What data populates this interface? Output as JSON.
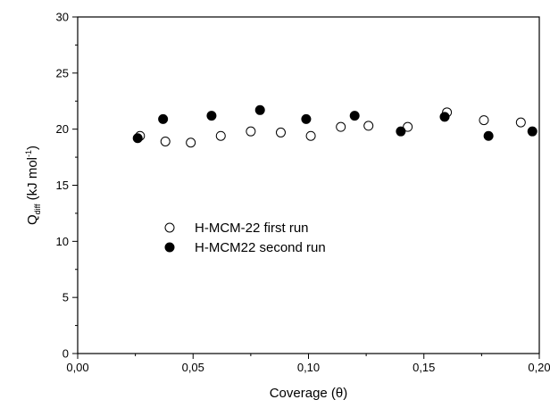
{
  "chart_data": {
    "type": "scatter",
    "xlabel": "Coverage (θ)",
    "ylabel": {
      "main": "Q",
      "sub": "diff",
      "unit_prefix": " (kJ mol",
      "sup": "-1",
      "unit_suffix": ")"
    },
    "xlim": [
      0.0,
      0.2
    ],
    "ylim": [
      0,
      30
    ],
    "x_ticks": [
      {
        "value": 0.0,
        "label": "0,00"
      },
      {
        "value": 0.05,
        "label": "0,05"
      },
      {
        "value": 0.1,
        "label": "0,10"
      },
      {
        "value": 0.15,
        "label": "0,15"
      },
      {
        "value": 0.2,
        "label": "0,20"
      }
    ],
    "y_ticks": [
      {
        "value": 0,
        "label": "0"
      },
      {
        "value": 5,
        "label": "5"
      },
      {
        "value": 10,
        "label": "10"
      },
      {
        "value": 15,
        "label": "15"
      },
      {
        "value": 20,
        "label": "20"
      },
      {
        "value": 25,
        "label": "25"
      },
      {
        "value": 30,
        "label": "30"
      }
    ],
    "grid": false,
    "legend_position": "middle-left",
    "series": [
      {
        "name": "H-MCM-22 first run",
        "marker": "open-circle",
        "color": "#000000",
        "points": [
          {
            "x": 0.027,
            "y": 19.4
          },
          {
            "x": 0.038,
            "y": 18.9
          },
          {
            "x": 0.049,
            "y": 18.8
          },
          {
            "x": 0.062,
            "y": 19.4
          },
          {
            "x": 0.075,
            "y": 19.8
          },
          {
            "x": 0.088,
            "y": 19.7
          },
          {
            "x": 0.101,
            "y": 19.4
          },
          {
            "x": 0.114,
            "y": 20.2
          },
          {
            "x": 0.126,
            "y": 20.3
          },
          {
            "x": 0.143,
            "y": 20.2
          },
          {
            "x": 0.16,
            "y": 21.5
          },
          {
            "x": 0.176,
            "y": 20.8
          },
          {
            "x": 0.192,
            "y": 20.6
          }
        ]
      },
      {
        "name": "H-MCM22 second run",
        "marker": "filled-circle",
        "color": "#000000",
        "points": [
          {
            "x": 0.026,
            "y": 19.2
          },
          {
            "x": 0.037,
            "y": 20.9
          },
          {
            "x": 0.058,
            "y": 21.2
          },
          {
            "x": 0.079,
            "y": 21.7
          },
          {
            "x": 0.099,
            "y": 20.9
          },
          {
            "x": 0.12,
            "y": 21.2
          },
          {
            "x": 0.14,
            "y": 19.8
          },
          {
            "x": 0.159,
            "y": 21.1
          },
          {
            "x": 0.178,
            "y": 19.4
          },
          {
            "x": 0.197,
            "y": 19.8
          }
        ]
      }
    ]
  }
}
